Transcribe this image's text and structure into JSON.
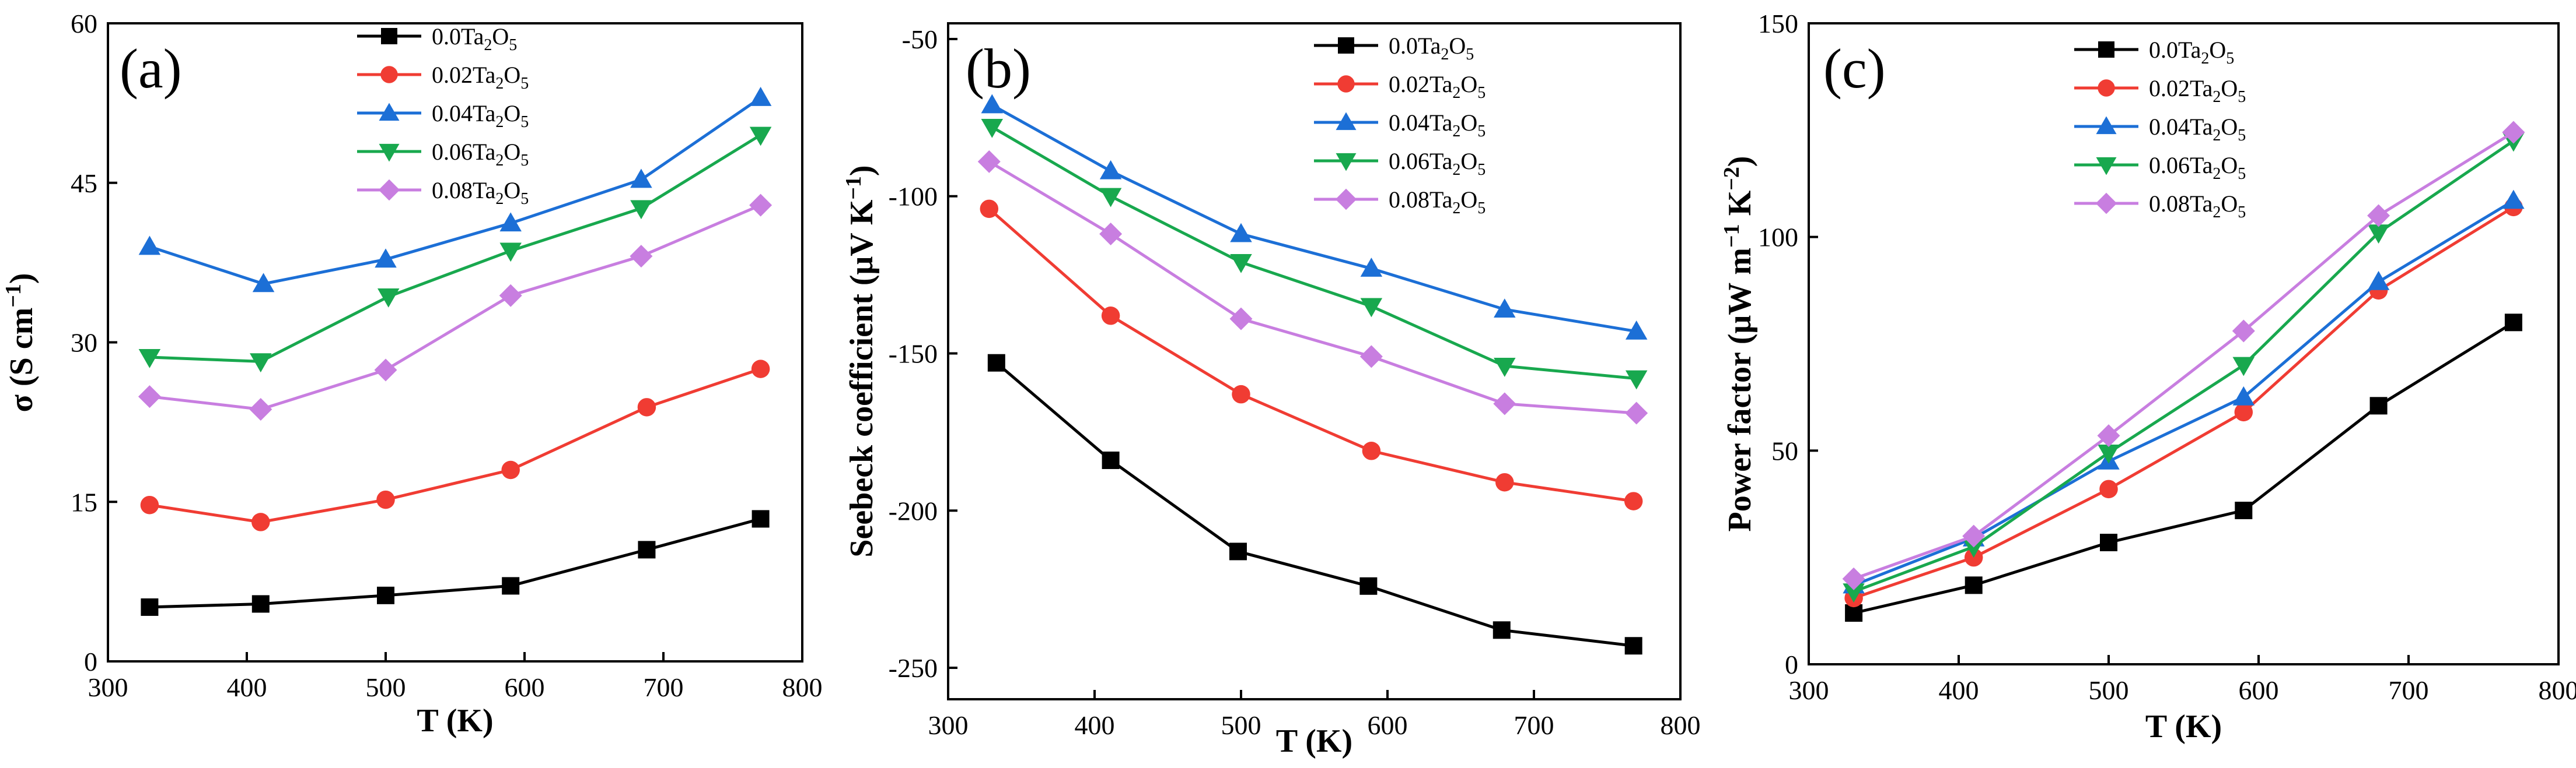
{
  "figure": {
    "colors": {
      "0.0Ta2O5": "#000000",
      "0.02Ta2O5": "#f03c33",
      "0.04Ta2O5": "#1c6fd6",
      "0.06Ta2O5": "#18a84e",
      "0.08Ta2O5": "#c87ee0"
    },
    "markers": {
      "0.0Ta2O5": "square",
      "0.02Ta2O5": "circle",
      "0.04Ta2O5": "triangle-up",
      "0.06Ta2O5": "triangle-down",
      "0.08Ta2O5": "diamond"
    }
  },
  "chart_data": [
    {
      "type": "line",
      "panel": "(a)",
      "xlabel": "T (K)",
      "ylabel_main": "σ (S cm",
      "ylabel_sup": "−1",
      "ylabel_close": ")",
      "xlim": [
        300,
        800
      ],
      "ylim": [
        0,
        60
      ],
      "xticks": [
        300,
        400,
        500,
        600,
        700,
        800
      ],
      "yticks": [
        0,
        15,
        30,
        45,
        60
      ],
      "legend_position": "top-center",
      "series": [
        {
          "name": "0.0Ta2O5",
          "label_pre": "0.0Ta",
          "label_sub": "2",
          "label_mid": "O",
          "label_sub2": "5",
          "x": [
            330,
            410,
            500,
            590,
            688,
            770
          ],
          "y": [
            5.1,
            5.4,
            6.2,
            7.1,
            10.5,
            13.4
          ]
        },
        {
          "name": "0.02Ta2O5",
          "label_pre": "0.02Ta",
          "label_sub": "2",
          "label_mid": "O",
          "label_sub2": "5",
          "x": [
            330,
            410,
            500,
            590,
            688,
            770
          ],
          "y": [
            14.7,
            13.1,
            15.2,
            18.0,
            23.9,
            27.5
          ]
        },
        {
          "name": "0.04Ta2O5",
          "label_pre": "0.04Ta",
          "label_sub": "2",
          "label_mid": "O",
          "label_sub2": "5",
          "x": [
            330,
            412,
            500,
            590,
            684,
            770
          ],
          "y": [
            39.0,
            35.5,
            37.8,
            41.2,
            45.3,
            53.0
          ]
        },
        {
          "name": "0.06Ta2O5",
          "label_pre": "0.06Ta",
          "label_sub": "2",
          "label_mid": "O",
          "label_sub2": "5",
          "x": [
            330,
            410,
            502,
            590,
            684,
            770
          ],
          "y": [
            28.6,
            28.2,
            34.3,
            38.6,
            42.6,
            49.5
          ]
        },
        {
          "name": "0.08Ta2O5",
          "label_pre": "0.08Ta",
          "label_sub": "2",
          "label_mid": "O",
          "label_sub2": "5",
          "x": [
            330,
            410,
            500,
            590,
            684,
            770
          ],
          "y": [
            24.9,
            23.7,
            27.4,
            34.4,
            38.1,
            42.9
          ]
        }
      ]
    },
    {
      "type": "line",
      "panel": "(b)",
      "xlabel": "T (K)",
      "ylabel_main": "Seebeck coefficient (μV K",
      "ylabel_sup": "−1",
      "ylabel_close": ")",
      "xlim": [
        300,
        800
      ],
      "ylim": [
        -260,
        -45
      ],
      "xticks": [
        300,
        400,
        500,
        600,
        700,
        800
      ],
      "yticks": [
        -250,
        -200,
        -150,
        -100,
        -50
      ],
      "legend_position": "top-right",
      "series": [
        {
          "name": "0.0Ta2O5",
          "label_pre": "0.0Ta",
          "label_sub": "2",
          "label_mid": "O",
          "label_sub2": "5",
          "x": [
            333,
            411,
            498,
            587,
            678,
            768
          ],
          "y": [
            -153,
            -184,
            -213,
            -224,
            -238,
            -243
          ]
        },
        {
          "name": "0.02Ta2O5",
          "label_pre": "0.02Ta",
          "label_sub": "2",
          "label_mid": "O",
          "label_sub2": "5",
          "x": [
            328,
            411,
            500,
            589,
            680,
            768
          ],
          "y": [
            -104,
            -138,
            -163,
            -181,
            -191,
            -197
          ]
        },
        {
          "name": "0.04Ta2O5",
          "label_pre": "0.04Ta",
          "label_sub": "2",
          "label_mid": "O",
          "label_sub2": "5",
          "x": [
            330,
            411,
            500,
            589,
            680,
            770
          ],
          "y": [
            -71,
            -92,
            -112,
            -123,
            -136,
            -143
          ]
        },
        {
          "name": "0.06Ta2O5",
          "label_pre": "0.06Ta",
          "label_sub": "2",
          "label_mid": "O",
          "label_sub2": "5",
          "x": [
            330,
            411,
            500,
            589,
            680,
            770
          ],
          "y": [
            -78,
            -100,
            -121,
            -135,
            -154,
            -158
          ]
        },
        {
          "name": "0.08Ta2O5",
          "label_pre": "0.08Ta",
          "label_sub": "2",
          "label_mid": "O",
          "label_sub2": "5",
          "x": [
            328,
            411,
            500,
            589,
            680,
            770
          ],
          "y": [
            -89,
            -112,
            -139,
            -151,
            -166,
            -169
          ]
        }
      ]
    },
    {
      "type": "line",
      "panel": "(c)",
      "xlabel": "T (K)",
      "ylabel_main": "Power factor (μW m",
      "ylabel_sup": "−1",
      "ylabel_mid": " K",
      "ylabel_sup2": "−2",
      "ylabel_close": ")",
      "xlim": [
        300,
        800
      ],
      "ylim": [
        0,
        150
      ],
      "xticks": [
        300,
        400,
        500,
        600,
        700,
        800
      ],
      "yticks": [
        0,
        50,
        100,
        150
      ],
      "legend_position": "top-center",
      "series": [
        {
          "name": "0.0Ta2O5",
          "label_pre": "0.0Ta",
          "label_sub": "2",
          "label_mid": "O",
          "label_sub2": "5",
          "x": [
            330,
            410,
            500,
            590,
            680,
            770
          ],
          "y": [
            12,
            18.5,
            28.5,
            36,
            60.5,
            80
          ]
        },
        {
          "name": "0.02Ta2O5",
          "label_pre": "0.02Ta",
          "label_sub": "2",
          "label_mid": "O",
          "label_sub2": "5",
          "x": [
            330,
            410,
            500,
            590,
            680,
            770
          ],
          "y": [
            15.5,
            25,
            41,
            59,
            87.5,
            107
          ]
        },
        {
          "name": "0.04Ta2O5",
          "label_pre": "0.04Ta",
          "label_sub": "2",
          "label_mid": "O",
          "label_sub2": "5",
          "x": [
            330,
            410,
            500,
            590,
            680,
            770
          ],
          "y": [
            18.5,
            29.5,
            47.5,
            62.5,
            89.5,
            108.5
          ]
        },
        {
          "name": "0.06Ta2O5",
          "label_pre": "0.06Ta",
          "label_sub": "2",
          "label_mid": "O",
          "label_sub2": "5",
          "x": [
            330,
            410,
            500,
            590,
            680,
            770
          ],
          "y": [
            17,
            27.5,
            49.5,
            70,
            101,
            122.5
          ]
        },
        {
          "name": "0.08Ta2O5",
          "label_pre": "0.08Ta",
          "label_sub": "2",
          "label_mid": "O",
          "label_sub2": "5",
          "x": [
            330,
            410,
            500,
            590,
            680,
            770
          ],
          "y": [
            20,
            30,
            53.5,
            78,
            105,
            124.5
          ]
        }
      ]
    }
  ]
}
